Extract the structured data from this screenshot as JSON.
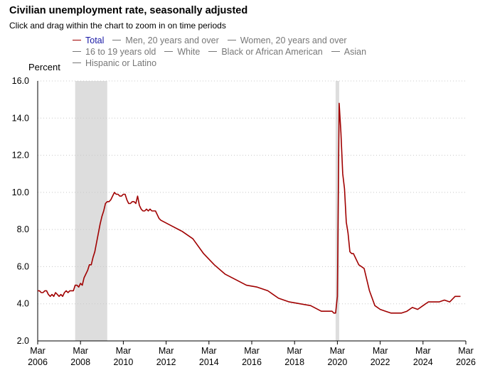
{
  "header": {
    "title": "Civilian unemployment rate, seasonally adjusted",
    "subtitle": "Click and drag within the chart to zoom in on time periods"
  },
  "legend": {
    "items": [
      {
        "label": "Total",
        "active": true
      },
      {
        "label": "Men, 20 years and over",
        "active": false
      },
      {
        "label": "Women, 20 years and over",
        "active": false
      },
      {
        "label": "16 to 19 years old",
        "active": false
      },
      {
        "label": "White",
        "active": false
      },
      {
        "label": "Black or African American",
        "active": false
      },
      {
        "label": "Asian",
        "active": false
      },
      {
        "label": "Hispanic or Latino",
        "active": false
      }
    ]
  },
  "colors": {
    "series": "#a00000",
    "recession": "#dddddd",
    "grid": "#c8c8c8",
    "legend_active_text": "#1a1aa6",
    "legend_inactive": "#777777"
  },
  "chart_data": {
    "type": "line",
    "title": "Civilian unemployment rate, seasonally adjusted",
    "ylabel": "Percent",
    "ylim": [
      2.0,
      16.0
    ],
    "y_ticks": [
      "16.0",
      "14.0",
      "12.0",
      "10.0",
      "8.0",
      "6.0",
      "4.0",
      "2.0"
    ],
    "y_tick_values": [
      16,
      14,
      12,
      10,
      8,
      6,
      4,
      2
    ],
    "xlim": [
      "2006-03",
      "2026-03"
    ],
    "x_ticks": [
      {
        "date": "2006-03",
        "label": [
          "Mar",
          "2006"
        ]
      },
      {
        "date": "2008-03",
        "label": [
          "Mar",
          "2008"
        ]
      },
      {
        "date": "2010-03",
        "label": [
          "Mar",
          "2010"
        ]
      },
      {
        "date": "2012-03",
        "label": [
          "Mar",
          "2012"
        ]
      },
      {
        "date": "2014-03",
        "label": [
          "Mar",
          "2014"
        ]
      },
      {
        "date": "2016-03",
        "label": [
          "Mar",
          "2016"
        ]
      },
      {
        "date": "2018-03",
        "label": [
          "Mar",
          "2018"
        ]
      },
      {
        "date": "2020-03",
        "label": [
          "Mar",
          "2020"
        ]
      },
      {
        "date": "2022-03",
        "label": [
          "Mar",
          "2022"
        ]
      },
      {
        "date": "2024-03",
        "label": [
          "Mar",
          "2024"
        ]
      },
      {
        "date": "2026-03",
        "label": [
          "Mar",
          "2026"
        ]
      }
    ],
    "grid": true,
    "legend_position": "top",
    "recessions": [
      {
        "start": "2007-12",
        "end": "2009-06"
      },
      {
        "start": "2020-02",
        "end": "2020-04"
      }
    ],
    "series": [
      {
        "name": "Total",
        "x": [
          "2006-03",
          "2006-04",
          "2006-05",
          "2006-06",
          "2006-07",
          "2006-08",
          "2006-09",
          "2006-10",
          "2006-11",
          "2006-12",
          "2007-01",
          "2007-02",
          "2007-03",
          "2007-04",
          "2007-05",
          "2007-06",
          "2007-07",
          "2007-08",
          "2007-09",
          "2007-10",
          "2007-11",
          "2007-12",
          "2008-01",
          "2008-02",
          "2008-03",
          "2008-04",
          "2008-05",
          "2008-06",
          "2008-07",
          "2008-08",
          "2008-09",
          "2008-10",
          "2008-11",
          "2008-12",
          "2009-01",
          "2009-02",
          "2009-03",
          "2009-04",
          "2009-05",
          "2009-06",
          "2009-07",
          "2009-08",
          "2009-09",
          "2009-10",
          "2009-11",
          "2009-12",
          "2010-01",
          "2010-02",
          "2010-03",
          "2010-04",
          "2010-05",
          "2010-06",
          "2010-07",
          "2010-08",
          "2010-09",
          "2010-10",
          "2010-11",
          "2010-12",
          "2011-01",
          "2011-02",
          "2011-03",
          "2011-04",
          "2011-05",
          "2011-06",
          "2011-07",
          "2011-08",
          "2011-09",
          "2011-10",
          "2011-11",
          "2011-12",
          "2012-06",
          "2012-12",
          "2013-06",
          "2013-12",
          "2014-06",
          "2014-12",
          "2015-06",
          "2015-12",
          "2016-06",
          "2016-12",
          "2017-06",
          "2017-12",
          "2018-06",
          "2018-12",
          "2019-06",
          "2019-12",
          "2020-01",
          "2020-02",
          "2020-03",
          "2020-04",
          "2020-05",
          "2020-06",
          "2020-07",
          "2020-08",
          "2020-09",
          "2020-10",
          "2020-11",
          "2020-12",
          "2021-03",
          "2021-06",
          "2021-09",
          "2021-12",
          "2022-03",
          "2022-06",
          "2022-09",
          "2022-12",
          "2023-03",
          "2023-06",
          "2023-09",
          "2023-12",
          "2024-03",
          "2024-06",
          "2024-09",
          "2024-12",
          "2025-03",
          "2025-06",
          "2025-09",
          "2025-12"
        ],
        "values": [
          4.7,
          4.7,
          4.6,
          4.6,
          4.7,
          4.7,
          4.5,
          4.4,
          4.5,
          4.4,
          4.6,
          4.5,
          4.4,
          4.5,
          4.4,
          4.6,
          4.7,
          4.6,
          4.7,
          4.7,
          4.7,
          5.0,
          5.0,
          4.9,
          5.1,
          5.0,
          5.4,
          5.6,
          5.8,
          6.1,
          6.1,
          6.5,
          6.8,
          7.3,
          7.8,
          8.3,
          8.7,
          9.0,
          9.4,
          9.5,
          9.5,
          9.6,
          9.8,
          10.0,
          9.9,
          9.9,
          9.8,
          9.8,
          9.9,
          9.9,
          9.6,
          9.4,
          9.4,
          9.5,
          9.5,
          9.4,
          9.8,
          9.3,
          9.1,
          9.0,
          9.0,
          9.1,
          9.0,
          9.1,
          9.0,
          9.0,
          9.0,
          8.8,
          8.6,
          8.5,
          8.2,
          7.9,
          7.5,
          6.7,
          6.1,
          5.6,
          5.3,
          5.0,
          4.9,
          4.7,
          4.3,
          4.1,
          4.0,
          3.9,
          3.6,
          3.6,
          3.5,
          3.5,
          4.4,
          14.8,
          13.2,
          11.0,
          10.2,
          8.4,
          7.8,
          6.8,
          6.7,
          6.7,
          6.1,
          5.9,
          4.7,
          3.9,
          3.7,
          3.6,
          3.5,
          3.5,
          3.5,
          3.6,
          3.8,
          3.7,
          3.9,
          4.1,
          4.1,
          4.1,
          4.2,
          4.1,
          4.4,
          4.4
        ]
      }
    ]
  }
}
